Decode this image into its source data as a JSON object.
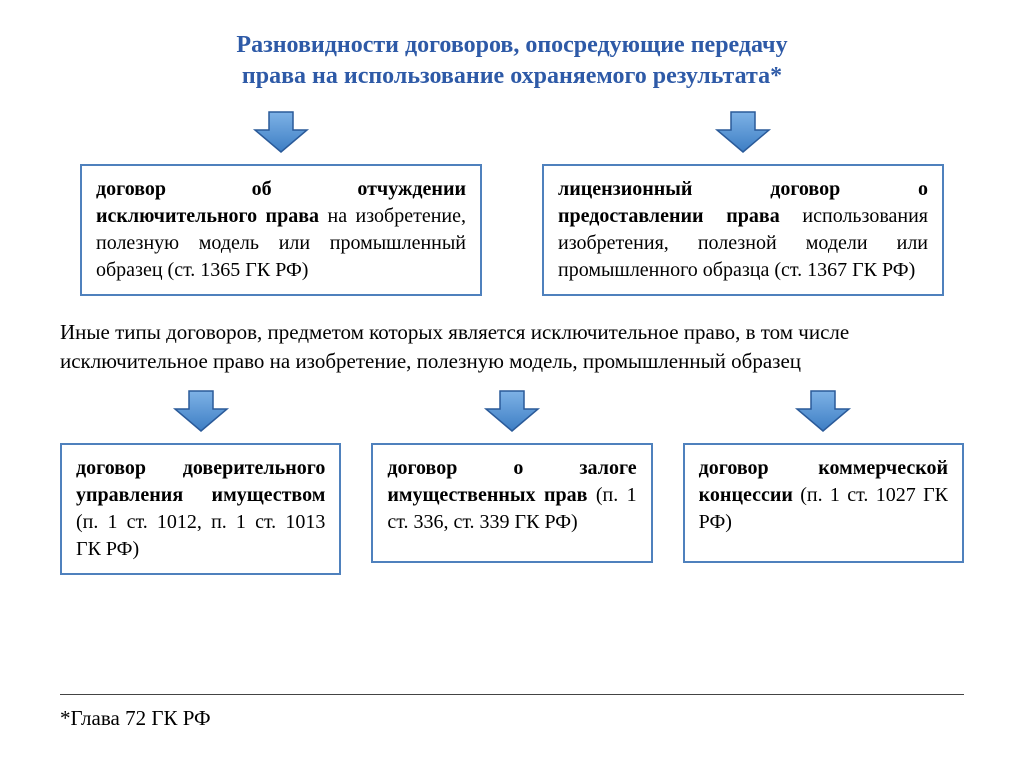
{
  "title_line1": "Разновидности договоров, опосредующие передачу",
  "title_line2": "права на использование охраняемого результата*",
  "title_color": "#2e5aa7",
  "arrow": {
    "fill_top": "#7eb2e6",
    "fill_bottom": "#3d7ec4",
    "stroke": "#2a5a99"
  },
  "box_border_color": "#4f81bd",
  "box_bg": "#ffffff",
  "text_color": "#000000",
  "top_boxes": [
    {
      "bold": "договор об отчуждении исключительного права",
      "rest": " на изобретение, полезную модель или промышленный образец (ст. 1365 ГК РФ)"
    },
    {
      "bold": "лицензионный договор о предоставлении права",
      "rest": " использования изобретения, полезной модели или промышленного образца (ст. 1367 ГК РФ)"
    }
  ],
  "middle_text": "Иные типы договоров, предметом которых является исключительное право, в том числе исключительное право на изобретение, полезную модель, промышленный образец",
  "bottom_boxes": [
    {
      "bold": "договор доверительного управления имуществом",
      "rest": " (п. 1 ст. 1012, п. 1 ст. 1013 ГК РФ)"
    },
    {
      "bold": "договор о залоге имущественных прав",
      "rest": " (п. 1 ст. 336, ст. 339 ГК РФ)"
    },
    {
      "bold": "договор коммерческой концессии",
      "rest": " (п. 1 ст. 1027 ГК РФ)"
    }
  ],
  "footnote": "*Глава 72 ГК РФ"
}
